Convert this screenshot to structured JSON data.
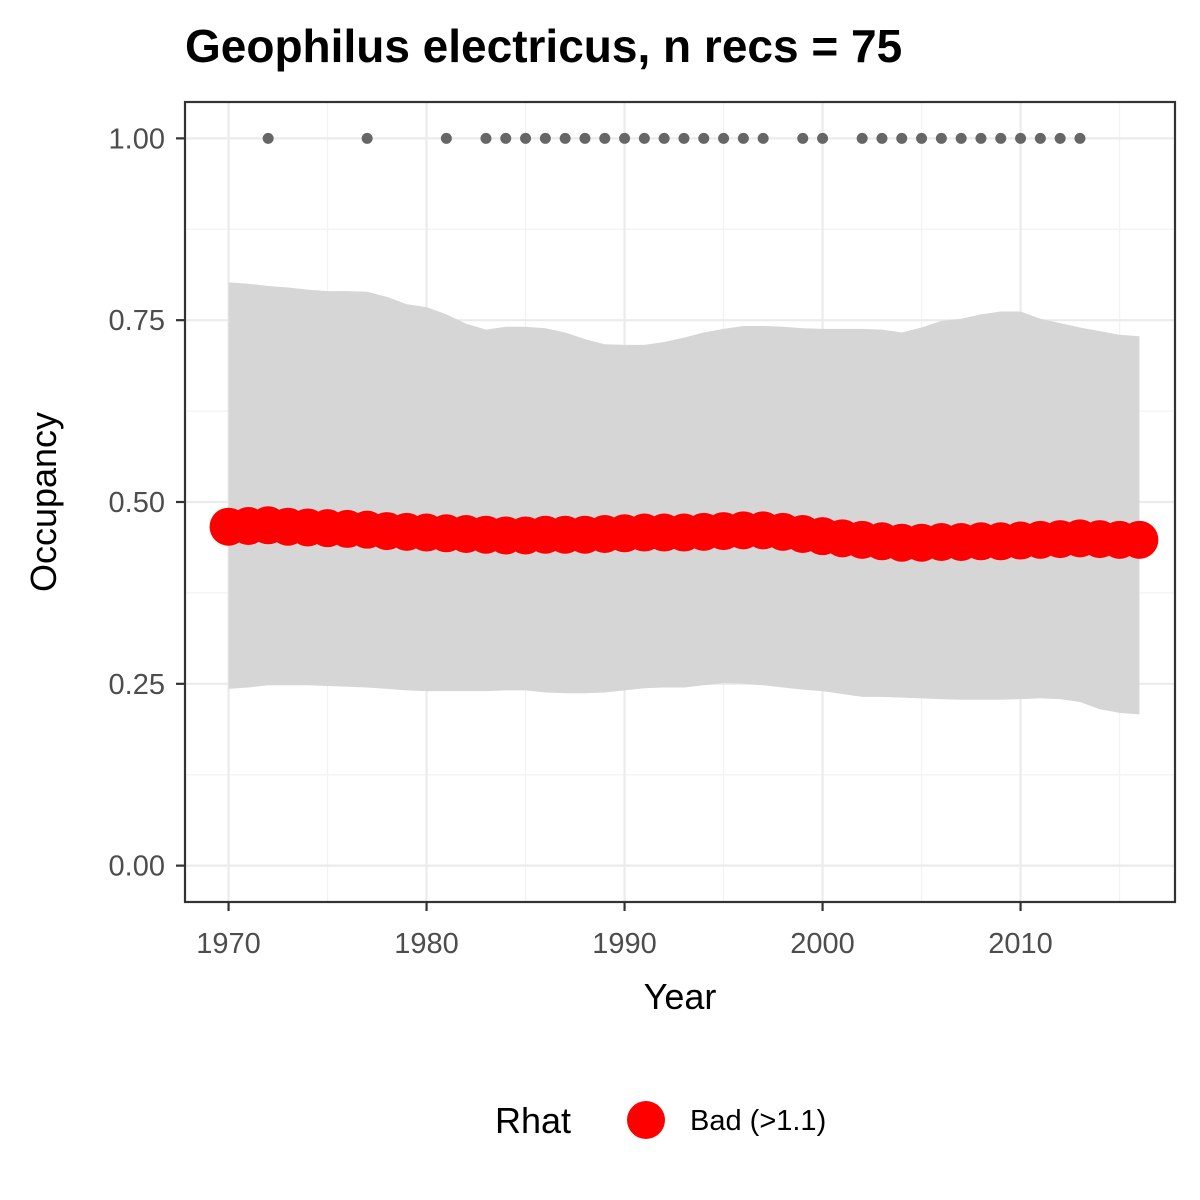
{
  "chart_data": {
    "type": "line",
    "title": "Geophilus electricus, n recs = 75",
    "xlabel": "Year",
    "ylabel": "Occupancy",
    "xlim": [
      1967.8,
      2017.8
    ],
    "ylim": [
      -0.05,
      1.05
    ],
    "x_ticks": [
      1970,
      1980,
      1990,
      2000,
      2010
    ],
    "x_tick_labels": [
      "1970",
      "1980",
      "1990",
      "2000",
      "2010"
    ],
    "y_ticks": [
      0,
      0.25,
      0.5,
      0.75,
      1.0
    ],
    "y_tick_labels": [
      "0.00",
      "0.25",
      "0.50",
      "0.75",
      "1.00"
    ],
    "grid": true,
    "x": [
      1970,
      1971,
      1972,
      1973,
      1974,
      1975,
      1976,
      1977,
      1978,
      1979,
      1980,
      1981,
      1982,
      1983,
      1984,
      1985,
      1986,
      1987,
      1988,
      1989,
      1990,
      1991,
      1992,
      1993,
      1994,
      1995,
      1996,
      1997,
      1998,
      1999,
      2000,
      2001,
      2002,
      2003,
      2004,
      2005,
      2006,
      2007,
      2008,
      2009,
      2010,
      2011,
      2012,
      2013,
      2014,
      2015,
      2016
    ],
    "series": [
      {
        "values": [
          0.466,
          0.467,
          0.468,
          0.466,
          0.465,
          0.464,
          0.463,
          0.462,
          0.46,
          0.459,
          0.458,
          0.457,
          0.456,
          0.455,
          0.454,
          0.454,
          0.455,
          0.455,
          0.455,
          0.456,
          0.457,
          0.458,
          0.458,
          0.458,
          0.459,
          0.46,
          0.461,
          0.461,
          0.459,
          0.456,
          0.453,
          0.45,
          0.448,
          0.446,
          0.444,
          0.444,
          0.445,
          0.445,
          0.446,
          0.446,
          0.447,
          0.448,
          0.449,
          0.45,
          0.449,
          0.448,
          0.448
        ],
        "lower": [
          0.243,
          0.245,
          0.248,
          0.248,
          0.248,
          0.247,
          0.246,
          0.245,
          0.243,
          0.241,
          0.24,
          0.24,
          0.24,
          0.24,
          0.241,
          0.241,
          0.238,
          0.237,
          0.237,
          0.238,
          0.241,
          0.244,
          0.245,
          0.245,
          0.248,
          0.251,
          0.25,
          0.248,
          0.245,
          0.242,
          0.24,
          0.236,
          0.232,
          0.232,
          0.231,
          0.23,
          0.229,
          0.228,
          0.228,
          0.228,
          0.229,
          0.23,
          0.229,
          0.225,
          0.215,
          0.21,
          0.208
        ],
        "upper": [
          0.802,
          0.8,
          0.797,
          0.795,
          0.792,
          0.79,
          0.79,
          0.789,
          0.782,
          0.772,
          0.768,
          0.758,
          0.745,
          0.737,
          0.741,
          0.741,
          0.739,
          0.733,
          0.724,
          0.717,
          0.716,
          0.716,
          0.72,
          0.726,
          0.733,
          0.738,
          0.742,
          0.742,
          0.741,
          0.739,
          0.738,
          0.738,
          0.738,
          0.737,
          0.733,
          0.74,
          0.749,
          0.752,
          0.758,
          0.762,
          0.762,
          0.752,
          0.746,
          0.74,
          0.735,
          0.73,
          0.728
        ],
        "color": "#ff0000",
        "ribbon_color": "#d6d6d6"
      }
    ],
    "records_y": 1.0,
    "records_color": "#666666",
    "records_x": [
      1972,
      1977,
      1981,
      1983,
      1984,
      1985,
      1986,
      1987,
      1988,
      1989,
      1990,
      1991,
      1992,
      1993,
      1994,
      1995,
      1996,
      1997,
      1999,
      2000,
      2002,
      2003,
      2004,
      2005,
      2006,
      2007,
      2008,
      2009,
      2010,
      2011,
      2012,
      2013
    ],
    "legend": {
      "title": "Rhat",
      "placement": "bottom",
      "items": [
        {
          "label": "Bad (>1.1)",
          "color": "#ff0000"
        }
      ]
    }
  }
}
